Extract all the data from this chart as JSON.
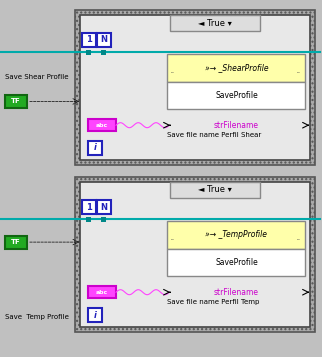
{
  "bg_color": "#c0c0c0",
  "inner_bg": "#e8e8e8",
  "white": "#ffffff",
  "hatch_color": "#888888",
  "blue_border": "#2222bb",
  "green_fill": "#22aa22",
  "green_border": "#116611",
  "magenta_fill": "#ff44ff",
  "magenta_border": "#cc00cc",
  "magenta_text": "#cc00cc",
  "teal_wire": "#00aaaa",
  "teal_node": "#008888",
  "func_top_bg": "#ffffaa",
  "func_bot_bg": "#ffffff",
  "func_border": "#888888",
  "header_bg": "#dddddd",
  "header_border": "#888888",
  "block1": {
    "label_left": "Save Shear Profile",
    "tf_label": "TF",
    "title": "True",
    "func_name": "»→ _ShearProfile",
    "sub_title": "SaveProfile",
    "str_label": "strFilename",
    "save_label": "Save file name Perfil Shear",
    "num1": "1",
    "numN": "N",
    "iter": "i"
  },
  "block2": {
    "label_left": "Save  Temp Profile",
    "tf_label": "TF",
    "title": "True",
    "func_name": "»→ _TempProfile",
    "sub_title": "SaveProfile",
    "str_label": "strFilename",
    "save_label": "Save file name Perfil Temp",
    "num1": "1",
    "numN": "N",
    "iter": "i"
  }
}
